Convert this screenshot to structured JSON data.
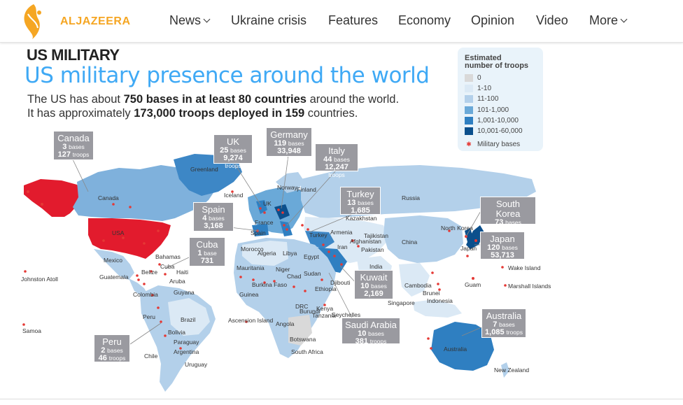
{
  "header": {
    "logo_text": "ALJAZEERA",
    "nav": [
      {
        "label": "News",
        "dropdown": true
      },
      {
        "label": "Ukraine crisis",
        "dropdown": false
      },
      {
        "label": "Features",
        "dropdown": false
      },
      {
        "label": "Economy",
        "dropdown": false
      },
      {
        "label": "Opinion",
        "dropdown": false
      },
      {
        "label": "Video",
        "dropdown": false
      },
      {
        "label": "More",
        "dropdown": true
      }
    ]
  },
  "infographic": {
    "kicker": "US MILITARY",
    "title": "US military presence around the world",
    "line1": {
      "pre": "The US has about ",
      "bold": "750 bases in at least 80 countries",
      "post": " around the world."
    },
    "line2": {
      "pre": "It has approximately ",
      "bold": "173,000 troops deployed in 159",
      "post": " countries."
    },
    "legend": {
      "title_1": "Estimated",
      "title_2": "number of troops",
      "items": [
        {
          "label": "0",
          "color": "#d9d9d9"
        },
        {
          "label": "1-10",
          "color": "#dbe9f5"
        },
        {
          "label": "11-100",
          "color": "#b3d0ea"
        },
        {
          "label": "101-1,000",
          "color": "#6aa9d8"
        },
        {
          "label": "1,001-10,000",
          "color": "#2f7fc1"
        },
        {
          "label": "10,001-60,000",
          "color": "#0b4f8c"
        }
      ],
      "bases_label": "Military bases",
      "bases_color": "#e53935"
    },
    "callouts": [
      {
        "country": "Canada",
        "bases": "3",
        "bases_unit": "bases",
        "troops": "127",
        "troops_unit": "troops"
      },
      {
        "country": "UK",
        "bases": "25",
        "bases_unit": "bases",
        "troops": "9,274",
        "troops_unit": "troops"
      },
      {
        "country": "Germany",
        "bases": "119",
        "bases_unit": "bases",
        "troops": "33,948",
        "troops_unit": "troops"
      },
      {
        "country": "Italy",
        "bases": "44",
        "bases_unit": "bases",
        "troops": "12,247",
        "troops_unit": "troops"
      },
      {
        "country": "Spain",
        "bases": "4",
        "bases_unit": "bases",
        "troops": "3,168",
        "troops_unit": "troops"
      },
      {
        "country": "Turkey",
        "bases": "13",
        "bases_unit": "bases",
        "troops": "1,685",
        "troops_unit": "troops"
      },
      {
        "country": "South Korea",
        "bases": "73",
        "bases_unit": "bases",
        "troops": "26,414",
        "troops_unit": "troops"
      },
      {
        "country": "Japan",
        "bases": "120",
        "bases_unit": "bases",
        "troops": "53,713",
        "troops_unit": "troops"
      },
      {
        "country": "Cuba",
        "bases": "1",
        "bases_unit": "base",
        "troops": "731",
        "troops_unit": "troops"
      },
      {
        "country": "Kuwait",
        "bases": "10",
        "bases_unit": "bases",
        "troops": "2,169",
        "troops_unit": "troops"
      },
      {
        "country": "Saudi Arabia",
        "bases": "10",
        "bases_unit": "bases",
        "troops": "381",
        "troops_unit": "troops"
      },
      {
        "country": "Australia",
        "bases": "7",
        "bases_unit": "bases",
        "troops": "1,085",
        "troops_unit": "troops"
      },
      {
        "country": "Peru",
        "bases": "2",
        "bases_unit": "bases",
        "troops": "46",
        "troops_unit": "troops"
      }
    ],
    "map_labels": [
      "Greenland",
      "Iceland",
      "Canada",
      "USA",
      "Norway",
      "Finland",
      "UK",
      "France",
      "Spain",
      "Russia",
      "Kazakhstan",
      "Armenia",
      "Turkey",
      "Tajikistan",
      "Afghanistan",
      "Iran",
      "Pakistan",
      "China",
      "North Korea",
      "Japan",
      "Mexico",
      "Bahamas",
      "Cuba",
      "Haiti",
      "Belize",
      "Aruba",
      "Guatemala",
      "Colombia",
      "Guyana",
      "Morocco",
      "Algeria",
      "Libya",
      "Egypt",
      "Mauritania",
      "Niger",
      "Chad",
      "Sudan",
      "Burkina Faso",
      "Guinea",
      "Ethiopia",
      "Djibouti",
      "India",
      "Cambodia",
      "Guam",
      "Wake Island",
      "Marshall Islands",
      "Brunei",
      "Indonesia",
      "Singapore",
      "Kenya",
      "DRC",
      "Burundi",
      "Tanzania",
      "Seychelles",
      "Peru",
      "Brazil",
      "Bolivia",
      "Paraguay",
      "Chile",
      "Argentina",
      "Uruguay",
      "Ascension Island",
      "Angola",
      "Botswana",
      "South Africa",
      "Australia",
      "New Zealand",
      "Johnston Atoll",
      "Samoa"
    ]
  }
}
